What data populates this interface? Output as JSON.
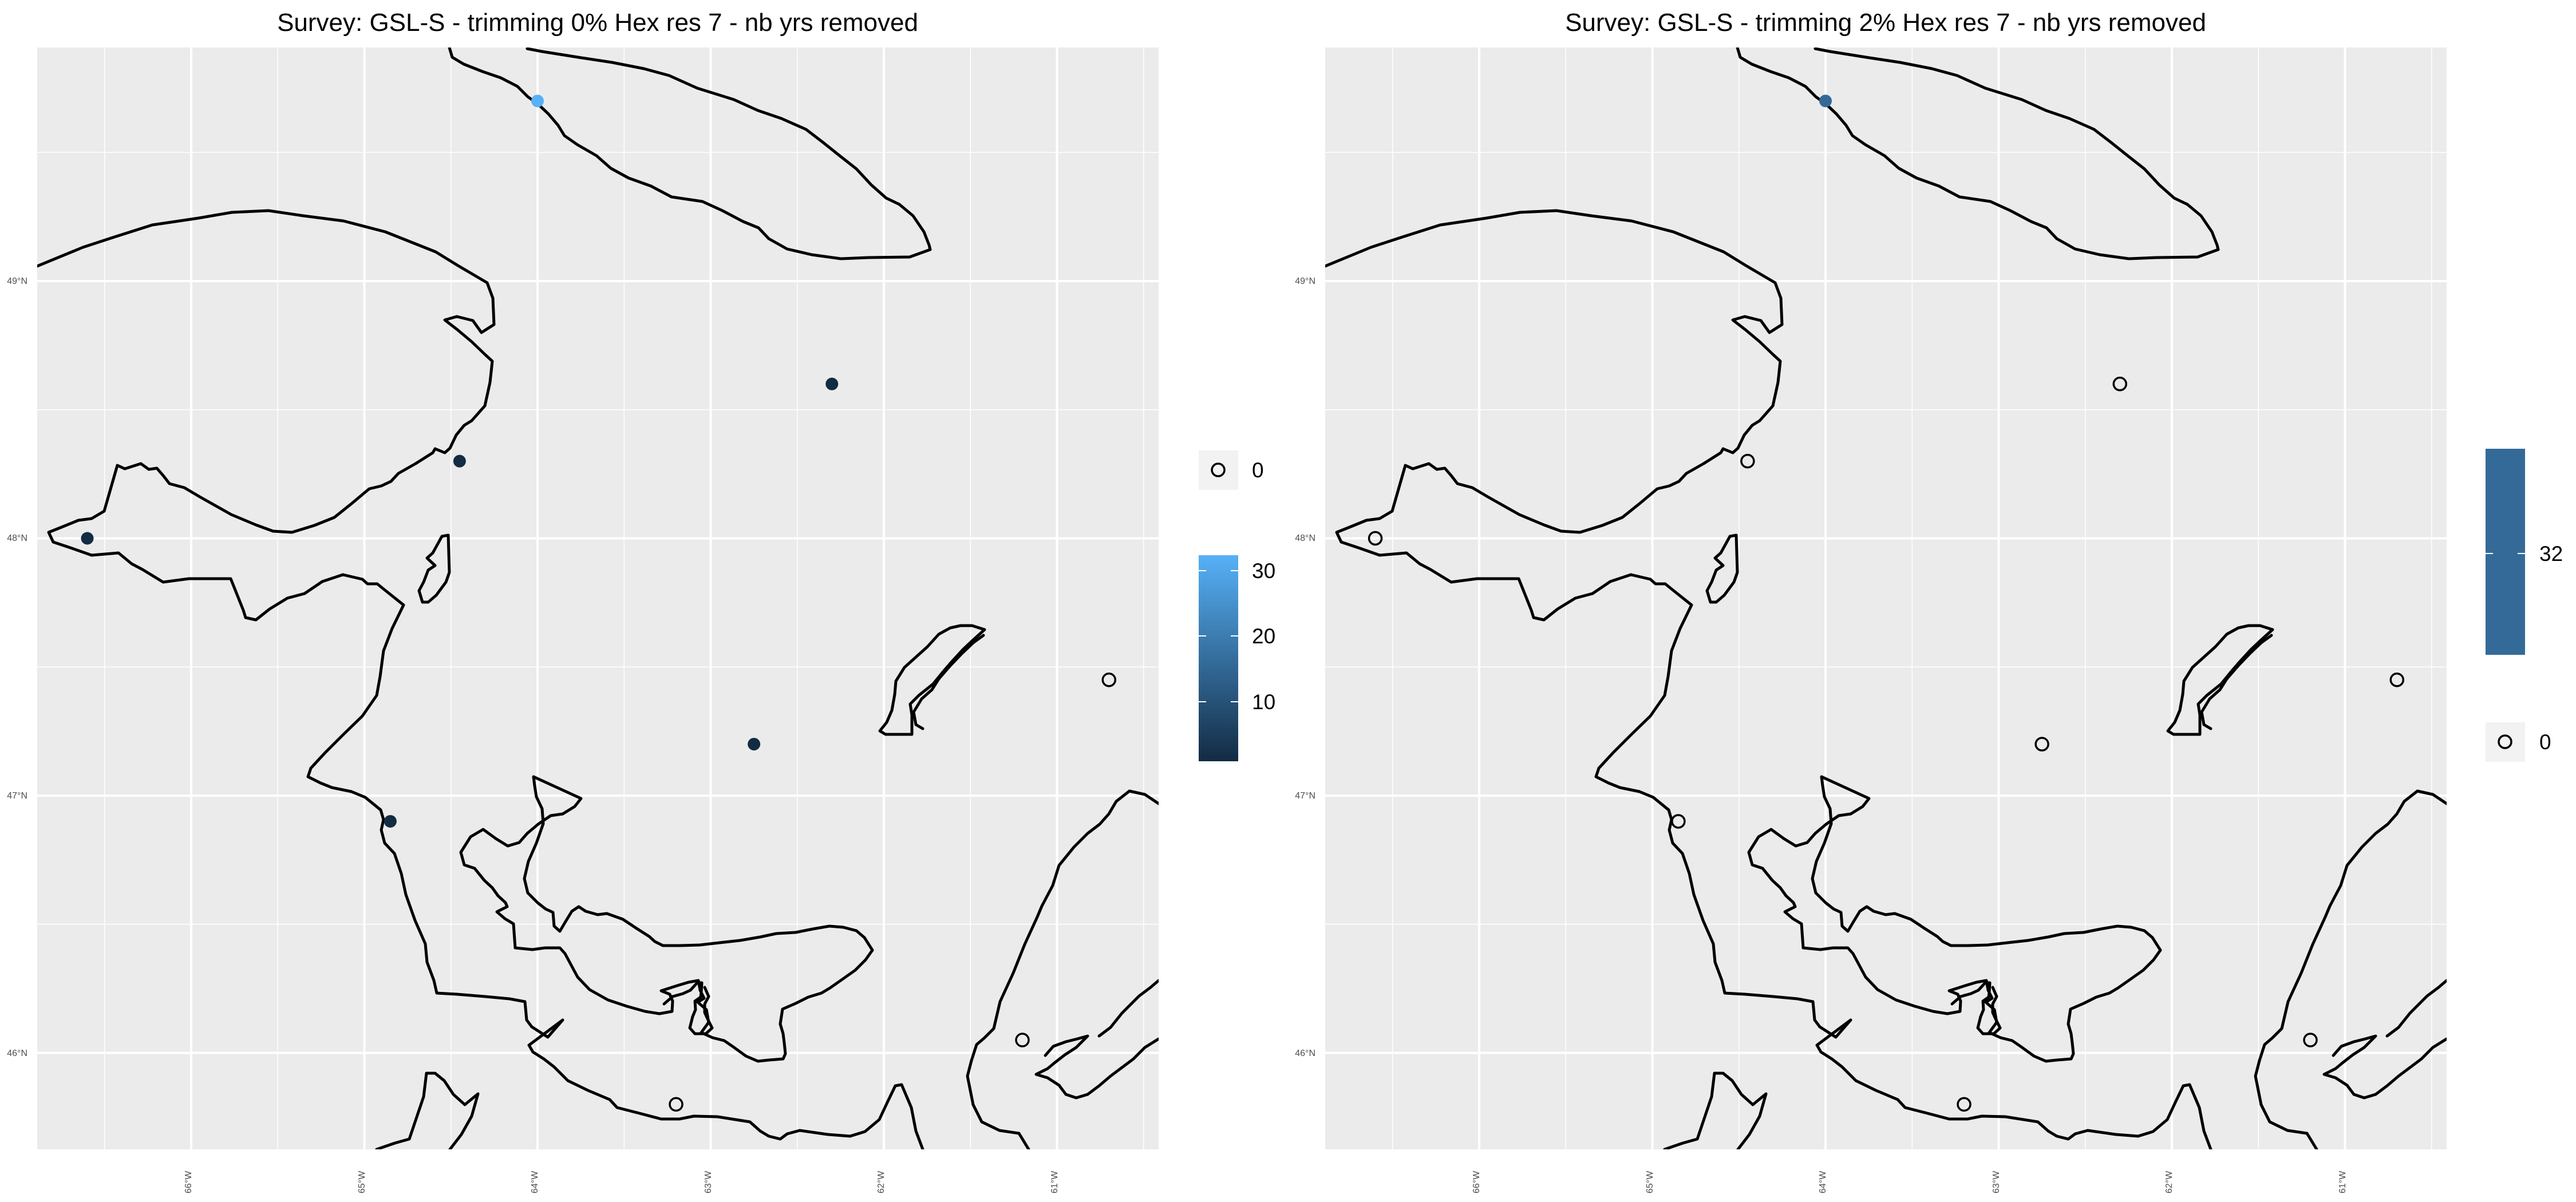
{
  "chart_data": [
    {
      "type": "map",
      "title": "Survey: GSL-S - trimming 0% Hex res 7 - nb yrs removed",
      "x_ticks": [
        "66°W",
        "65°W",
        "64°W",
        "63°W",
        "62°W",
        "61°W"
      ],
      "y_ticks": [
        "49°N",
        "48°N",
        "47°N",
        "46°N"
      ],
      "points": [
        {
          "lon": -64.0,
          "lat": 49.7,
          "value": 32
        },
        {
          "lon": -62.3,
          "lat": 48.6,
          "value": 1
        },
        {
          "lon": -64.45,
          "lat": 48.3,
          "value": 1
        },
        {
          "lon": -66.6,
          "lat": 48.0,
          "value": 1
        },
        {
          "lon": -62.75,
          "lat": 47.2,
          "value": 1
        },
        {
          "lon": -64.85,
          "lat": 46.9,
          "value": 1
        },
        {
          "lon": -60.7,
          "lat": 47.45,
          "value": 0
        },
        {
          "lon": -61.2,
          "lat": 46.05,
          "value": 0
        },
        {
          "lon": -63.2,
          "lat": 45.8,
          "value": 0
        }
      ],
      "legend": {
        "zero_label": "0",
        "colorbar_labels": [
          "30",
          "20",
          "10"
        ],
        "gradient": [
          "#132b43",
          "#56b1f7"
        ]
      }
    },
    {
      "type": "map",
      "title": "Survey: GSL-S - trimming 2% Hex res 7 - nb yrs removed",
      "x_ticks": [
        "66°W",
        "65°W",
        "64°W",
        "63°W",
        "62°W",
        "61°W"
      ],
      "y_ticks": [
        "49°N",
        "48°N",
        "47°N",
        "46°N"
      ],
      "points": [
        {
          "lon": -64.0,
          "lat": 49.7,
          "value": 32
        },
        {
          "lon": -62.3,
          "lat": 48.6,
          "value": 0
        },
        {
          "lon": -64.45,
          "lat": 48.3,
          "value": 0
        },
        {
          "lon": -66.6,
          "lat": 48.0,
          "value": 0
        },
        {
          "lon": -62.75,
          "lat": 47.2,
          "value": 0
        },
        {
          "lon": -64.85,
          "lat": 46.9,
          "value": 0
        },
        {
          "lon": -60.7,
          "lat": 47.45,
          "value": 0
        },
        {
          "lon": -61.2,
          "lat": 46.05,
          "value": 0
        },
        {
          "lon": -63.2,
          "lat": 45.8,
          "value": 0
        }
      ],
      "legend": {
        "colorbar_labels": [
          "32"
        ],
        "color": "#336a98",
        "zero_label": "0"
      }
    }
  ]
}
